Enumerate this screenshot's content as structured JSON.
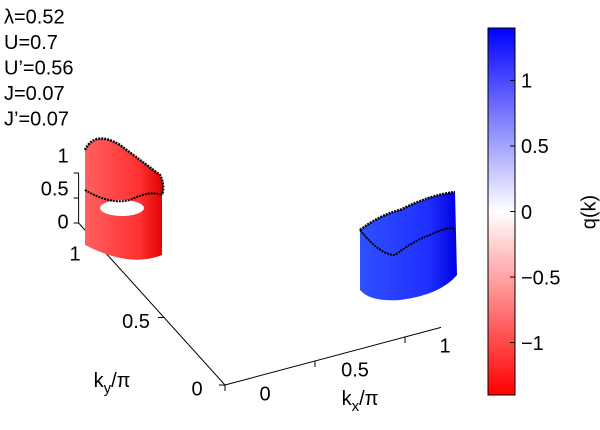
{
  "chart_data": {
    "type": "surface3d",
    "annotations": [
      "λ=0.52",
      "U=0.7",
      "U’=0.56",
      "J=0.07",
      "J’=0.07"
    ],
    "x_label": {
      "base": "k",
      "sub": "x",
      "tail": "/π"
    },
    "y_label": {
      "base": "k",
      "sub": "y",
      "tail": "/π"
    },
    "xlim": [
      0,
      1.2
    ],
    "ylim": [
      0,
      1.2
    ],
    "zlim": [
      0,
      1
    ],
    "xticks": [
      0,
      0.5,
      1
    ],
    "yticks": [
      0,
      0.5,
      1
    ],
    "zticks": [
      0,
      0.5,
      1
    ],
    "colorbar": {
      "label": "q(k)",
      "clim": [
        -1.4,
        1.4
      ],
      "ticks": [
        {
          "value": -1,
          "label": "−1"
        },
        {
          "value": -0.5,
          "label": "−0.5"
        },
        0,
        0.5,
        1
      ],
      "colors": [
        "#ff0000",
        "#ffffff",
        "#0000ff"
      ]
    }
  }
}
